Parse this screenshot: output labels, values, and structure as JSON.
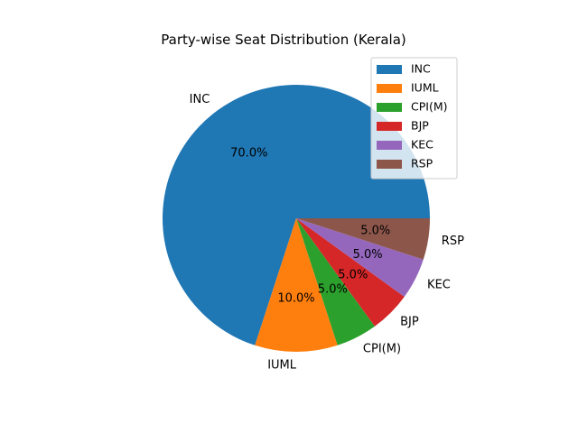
{
  "chart_data": {
    "type": "pie",
    "title": "Party-wise Seat Distribution (Kerala)",
    "slices": [
      {
        "label": "INC",
        "value": 70.0,
        "pct_label": "70.0%",
        "color": "#1f77b4"
      },
      {
        "label": "IUML",
        "value": 10.0,
        "pct_label": "10.0%",
        "color": "#ff7f0e"
      },
      {
        "label": "CPI(M)",
        "value": 5.0,
        "pct_label": "5.0%",
        "color": "#2ca02c"
      },
      {
        "label": "BJP",
        "value": 5.0,
        "pct_label": "5.0%",
        "color": "#d62728"
      },
      {
        "label": "KEC",
        "value": 5.0,
        "pct_label": "5.0%",
        "color": "#9467bd"
      },
      {
        "label": "RSP",
        "value": 5.0,
        "pct_label": "5.0%",
        "color": "#8c564b"
      }
    ],
    "legend": {
      "position": "upper right",
      "entries": [
        "INC",
        "IUML",
        "CPI(M)",
        "BJP",
        "KEC",
        "RSP"
      ]
    }
  }
}
